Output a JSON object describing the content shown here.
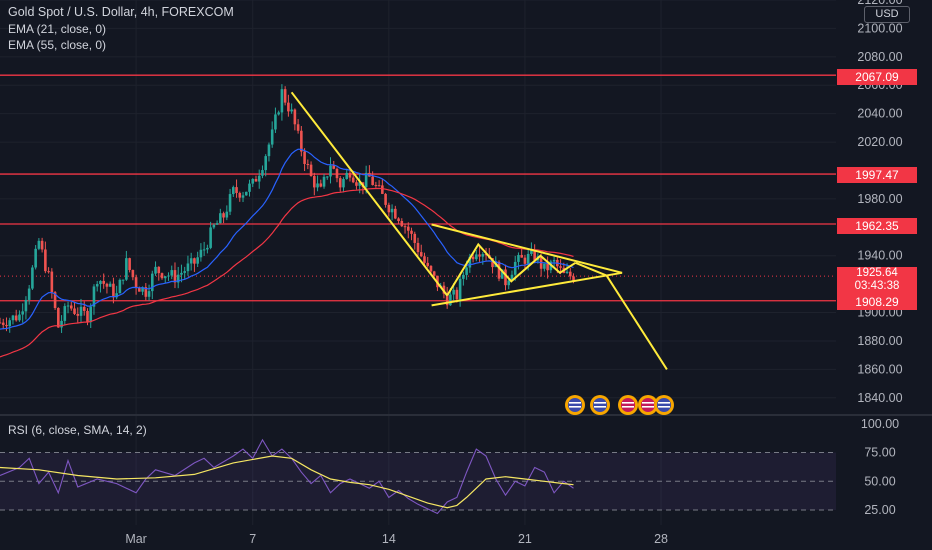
{
  "legend": {
    "title": "Gold Spot / U.S. Dollar, 4h, FOREXCOM",
    "ema1": "EMA (21, close, 0)",
    "ema2": "EMA (55, close, 0)",
    "rsi": "RSI (6, close, SMA, 14, 2)"
  },
  "currency": "USD",
  "price_labels": {
    "r1": "2067.09",
    "r2": "1997.47",
    "r3": "1962.35",
    "current": "1925.64",
    "countdown": "03:43:38",
    "support": "1908.29"
  },
  "colors": {
    "background": "#131722",
    "up": "#26a69a",
    "down": "#ef5350",
    "ema21": "#2962ff",
    "ema55": "#f23645",
    "levels": "#f23645",
    "drawing": "#ffeb3b",
    "rsi_line": "#7e57c2",
    "rsi_sma": "#f5e663"
  },
  "icons": [
    "us-flag-event-icon",
    "us-flag-event-icon",
    "us-flag-event-icon",
    "us-flag-event-icon"
  ],
  "chart_data": {
    "type": "candlestick",
    "symbol": "Gold Spot / U.S. Dollar",
    "timeframe": "4h",
    "y_ticks": [
      "2120.00",
      "2100.00",
      "2080.00",
      "2060.00",
      "2040.00",
      "2020.00",
      "1980.00",
      "1940.00",
      "1900.00",
      "1880.00",
      "1860.00",
      "1840.00"
    ],
    "ylim": [
      1830,
      2120
    ],
    "x_ticks": [
      "Mar",
      "7",
      "14",
      "21",
      "28"
    ],
    "x_tick_values": [
      1,
      7,
      14,
      21,
      28
    ],
    "xlim": [
      -6,
      37
    ],
    "horizontal_levels": [
      2067.09,
      1997.47,
      1962.35,
      1908.29
    ],
    "current_price": 1925.64,
    "close_path": [
      [
        -6,
        1893
      ],
      [
        -5,
        1898
      ],
      [
        -4.5,
        1920
      ],
      [
        -4,
        1950
      ],
      [
        -3.5,
        1925
      ],
      [
        -3,
        1890
      ],
      [
        -2.5,
        1905
      ],
      [
        -2,
        1900
      ],
      [
        -1.5,
        1898
      ],
      [
        -1,
        1925
      ],
      [
        0,
        1912
      ],
      [
        0.5,
        1935
      ],
      [
        1,
        1920
      ],
      [
        1.5,
        1915
      ],
      [
        2,
        1930
      ],
      [
        3,
        1925
      ],
      [
        4,
        1935
      ],
      [
        4.5,
        1945
      ],
      [
        5,
        1960
      ],
      [
        5.5,
        1968
      ],
      [
        6,
        1985
      ],
      [
        6.5,
        1985
      ],
      [
        7,
        1990
      ],
      [
        7.5,
        2005
      ],
      [
        8,
        2025
      ],
      [
        8.5,
        2055
      ],
      [
        9,
        2040
      ],
      [
        9.5,
        2015
      ],
      [
        10,
        1995
      ],
      [
        10.5,
        1985
      ],
      [
        11,
        2005
      ],
      [
        11.5,
        1990
      ],
      [
        12,
        2000
      ],
      [
        12.5,
        1990
      ],
      [
        13,
        1995
      ],
      [
        13.5,
        1985
      ],
      [
        14,
        1975
      ],
      [
        14.5,
        1968
      ],
      [
        15,
        1958
      ],
      [
        15.5,
        1945
      ],
      [
        16,
        1930
      ],
      [
        16.5,
        1920
      ],
      [
        17,
        1910
      ],
      [
        17.5,
        1912
      ],
      [
        18,
        1935
      ],
      [
        18.5,
        1945
      ],
      [
        19,
        1943
      ],
      [
        19.5,
        1932
      ],
      [
        20,
        1922
      ],
      [
        20.5,
        1935
      ],
      [
        21,
        1938
      ],
      [
        21.5,
        1940
      ],
      [
        22,
        1930
      ],
      [
        22.5,
        1935
      ],
      [
        23,
        1926
      ],
      [
        23.5,
        1925.64
      ]
    ],
    "drawings": {
      "trend_down": [
        [
          9,
          2055
        ],
        [
          17,
          1912
        ]
      ],
      "pattern_zigzag": [
        [
          17,
          1912
        ],
        [
          18.6,
          1948
        ],
        [
          20.3,
          1922
        ],
        [
          21.8,
          1940
        ],
        [
          22.8,
          1928
        ],
        [
          23.6,
          1935
        ]
      ],
      "triangle_upper": [
        [
          16.2,
          1962
        ],
        [
          26,
          1928
        ]
      ],
      "triangle_lower": [
        [
          16.2,
          1905
        ],
        [
          26,
          1928
        ]
      ],
      "projection": [
        [
          23.6,
          1935
        ],
        [
          25.2,
          1926
        ],
        [
          28.3,
          1860
        ]
      ]
    },
    "rsi": {
      "levels": [
        100,
        75,
        50,
        25
      ],
      "tick_labels": [
        "100.00",
        "75.00",
        "50.00",
        "25.00"
      ],
      "ylim": [
        12,
        105
      ],
      "values": [
        [
          -6,
          55
        ],
        [
          -5,
          62
        ],
        [
          -4.5,
          70
        ],
        [
          -4,
          48
        ],
        [
          -3.5,
          58
        ],
        [
          -3,
          40
        ],
        [
          -2.5,
          68
        ],
        [
          -2,
          45
        ],
        [
          -1,
          52
        ],
        [
          0,
          48
        ],
        [
          0.5,
          44
        ],
        [
          1,
          40
        ],
        [
          1.5,
          52
        ],
        [
          2,
          60
        ],
        [
          3,
          55
        ],
        [
          4,
          66
        ],
        [
          4.5,
          70
        ],
        [
          5,
          62
        ],
        [
          6,
          72
        ],
        [
          6.5,
          78
        ],
        [
          7,
          70
        ],
        [
          7.5,
          86
        ],
        [
          8,
          72
        ],
        [
          8.5,
          78
        ],
        [
          9,
          70
        ],
        [
          9.5,
          58
        ],
        [
          10,
          48
        ],
        [
          10.5,
          55
        ],
        [
          11,
          40
        ],
        [
          11.5,
          48
        ],
        [
          12,
          52
        ],
        [
          13,
          44
        ],
        [
          13.5,
          50
        ],
        [
          14,
          36
        ],
        [
          14.5,
          42
        ],
        [
          15,
          35
        ],
        [
          15.5,
          30
        ],
        [
          16,
          26
        ],
        [
          16.5,
          22
        ],
        [
          17,
          32
        ],
        [
          17.5,
          36
        ],
        [
          18,
          58
        ],
        [
          18.5,
          78
        ],
        [
          19,
          72
        ],
        [
          19.5,
          52
        ],
        [
          20,
          38
        ],
        [
          20.5,
          50
        ],
        [
          21,
          46
        ],
        [
          21.5,
          62
        ],
        [
          22,
          58
        ],
        [
          22.5,
          40
        ],
        [
          23,
          50
        ],
        [
          23.5,
          44
        ]
      ],
      "sma": [
        [
          -6,
          62
        ],
        [
          -4,
          60
        ],
        [
          -2,
          55
        ],
        [
          0,
          52
        ],
        [
          2,
          53
        ],
        [
          4,
          56
        ],
        [
          6,
          66
        ],
        [
          8,
          72
        ],
        [
          9,
          70
        ],
        [
          10,
          60
        ],
        [
          11,
          52
        ],
        [
          12,
          49
        ],
        [
          13,
          47
        ],
        [
          14,
          43
        ],
        [
          15,
          37
        ],
        [
          16,
          31
        ],
        [
          17,
          27
        ],
        [
          17.5,
          29
        ],
        [
          18,
          36
        ],
        [
          19,
          52
        ],
        [
          20,
          54
        ],
        [
          21,
          52
        ],
        [
          22,
          50
        ],
        [
          23,
          48
        ],
        [
          23.5,
          47
        ]
      ]
    }
  }
}
